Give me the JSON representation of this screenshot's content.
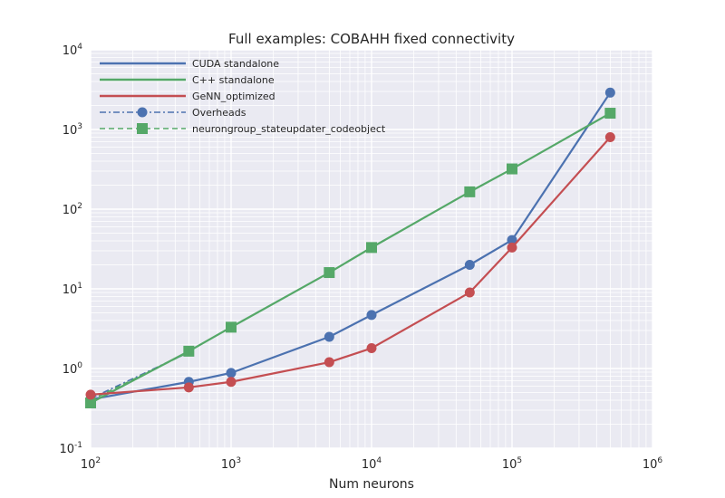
{
  "chart_data": {
    "type": "line",
    "title": "Full examples: COBAHH fixed connectivity",
    "xlabel": "Num neurons",
    "ylabel": "",
    "x_scale": "log",
    "y_scale": "log",
    "xlim": [
      100,
      1000000
    ],
    "ylim": [
      0.1,
      10000
    ],
    "grid": true,
    "legend_position": "top-left",
    "x_ticks": [
      {
        "base": "10",
        "exp": "2",
        "value": 100
      },
      {
        "base": "10",
        "exp": "3",
        "value": 1000
      },
      {
        "base": "10",
        "exp": "4",
        "value": 10000
      },
      {
        "base": "10",
        "exp": "5",
        "value": 100000
      },
      {
        "base": "10",
        "exp": "6",
        "value": 1000000
      }
    ],
    "y_ticks": [
      {
        "base": "10",
        "exp": "-1",
        "value": 0.1
      },
      {
        "base": "10",
        "exp": "0",
        "value": 1
      },
      {
        "base": "10",
        "exp": "1",
        "value": 10
      },
      {
        "base": "10",
        "exp": "2",
        "value": 100
      },
      {
        "base": "10",
        "exp": "3",
        "value": 1000
      },
      {
        "base": "10",
        "exp": "4",
        "value": 10000
      }
    ],
    "series": [
      {
        "name": "CUDA standalone",
        "color": "#4c72b0",
        "marker": "circle",
        "line": "solid",
        "x": [
          100,
          500,
          1000,
          5000,
          10000,
          50000,
          100000,
          500000
        ],
        "y": [
          0.41,
          0.68,
          0.88,
          2.5,
          4.7,
          20,
          41,
          2900
        ]
      },
      {
        "name": "C++ standalone",
        "color": "#55a868",
        "marker": "square",
        "line": "solid",
        "x": [
          100,
          500,
          1000,
          5000,
          10000,
          50000,
          100000,
          500000
        ],
        "y": [
          0.37,
          1.65,
          3.3,
          16,
          33,
          165,
          320,
          1600
        ]
      },
      {
        "name": "GeNN_optimized",
        "color": "#c44e52",
        "marker": "circle",
        "line": "solid",
        "x": [
          100,
          500,
          1000,
          5000,
          10000,
          50000,
          100000,
          500000
        ],
        "y": [
          0.47,
          0.58,
          0.68,
          1.2,
          1.8,
          9,
          33,
          800
        ]
      }
    ],
    "legend_entries": [
      {
        "label": "CUDA standalone",
        "color": "#4c72b0",
        "line": "solid",
        "marker": "none"
      },
      {
        "label": "C++ standalone",
        "color": "#55a868",
        "line": "solid",
        "marker": "none"
      },
      {
        "label": "GeNN_optimized",
        "color": "#c44e52",
        "line": "solid",
        "marker": "none"
      },
      {
        "label": "Overheads",
        "color": "#4c72b0",
        "line": "dashdot",
        "marker": "circle"
      },
      {
        "label": "neurongroup_stateupdater_codeobject",
        "color": "#55a868",
        "line": "dashed",
        "marker": "square"
      }
    ],
    "extra_lines": [
      {
        "color": "#4c72b0",
        "line": "dashdot",
        "x": [
          100,
          500
        ],
        "y": [
          0.42,
          1.6
        ]
      },
      {
        "color": "#55a868",
        "line": "dashed",
        "x": [
          100,
          500
        ],
        "y": [
          0.4,
          1.6
        ]
      }
    ],
    "colors": {
      "plot_background": "#eaeaf2",
      "grid": "#ffffff"
    }
  }
}
